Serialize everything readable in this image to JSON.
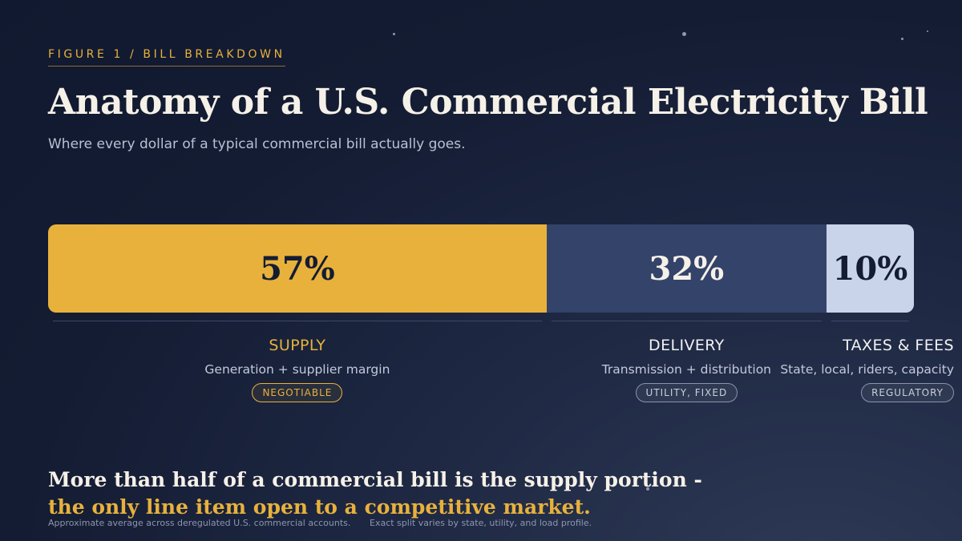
{
  "eyebrow": "FIGURE 1 / BILL BREAKDOWN",
  "title": "Anatomy of a U.S. Commercial Electricity Bill",
  "subtitle": "Where every dollar of a typical commercial bill actually goes.",
  "colors": {
    "supply": "#e8b13c",
    "delivery": "#34436a",
    "taxes": "#c9d3ea",
    "badge_supply": "#e8b13c",
    "badge_neutral": "#8a93aa"
  },
  "chart_data": {
    "type": "bar",
    "orientation": "horizontal-stacked",
    "categories": [
      "SUPPLY",
      "DELIVERY",
      "TAXES & FEES"
    ],
    "values": [
      57,
      32,
      10
    ],
    "value_labels": [
      "57%",
      "32%",
      "10%"
    ],
    "unit": "%",
    "descriptions": [
      "Generation + supplier margin",
      "Transmission + distribution",
      "State, local, riders, capacity"
    ],
    "tags": [
      "NEGOTIABLE",
      "UTILITY, FIXED",
      "REGULATORY"
    ]
  },
  "conclusion": {
    "line1": "More than half of a commercial bill is the supply portion -",
    "line2": "the only line item open to a competitive market."
  },
  "footnotes": [
    "Approximate average across deregulated U.S. commercial accounts.",
    "Exact split varies by state, utility, and load profile."
  ]
}
